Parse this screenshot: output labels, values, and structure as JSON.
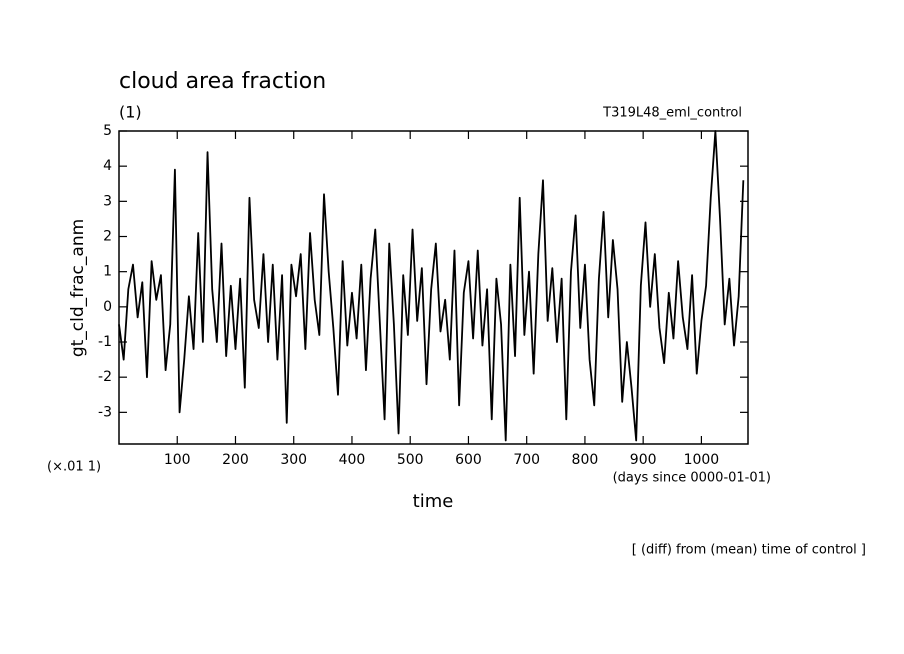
{
  "chart_data": {
    "type": "line",
    "title": "cloud area fraction",
    "subtitle": "(1)",
    "annotation": "T319L48_eml_control",
    "ylabel": "gt_cld_frac_anm",
    "yunit": "(×.01 1)",
    "xunit": "(days since 0000-01-01)",
    "xlabel": "time",
    "footnote": "[ (diff) from (mean) time of control ]",
    "xlim": [
      0,
      1080
    ],
    "xticks": [
      100,
      200,
      300,
      400,
      500,
      600,
      700,
      800,
      900,
      1000
    ],
    "ylim": [
      -3.9,
      5
    ],
    "yticks": [
      5,
      4,
      3,
      2,
      1,
      0,
      -1,
      -2,
      -3
    ],
    "x": [
      0,
      8,
      16,
      24,
      32,
      40,
      48,
      56,
      64,
      72,
      80,
      88,
      96,
      104,
      112,
      120,
      128,
      136,
      144,
      152,
      160,
      168,
      176,
      184,
      192,
      200,
      208,
      216,
      224,
      232,
      240,
      248,
      256,
      264,
      272,
      280,
      288,
      296,
      304,
      312,
      320,
      328,
      336,
      344,
      352,
      360,
      368,
      376,
      384,
      392,
      400,
      408,
      416,
      424,
      432,
      440,
      448,
      456,
      464,
      472,
      480,
      488,
      496,
      504,
      512,
      520,
      528,
      536,
      544,
      552,
      560,
      568,
      576,
      584,
      592,
      600,
      608,
      616,
      624,
      632,
      640,
      648,
      656,
      664,
      672,
      680,
      688,
      696,
      704,
      712,
      720,
      728,
      736,
      744,
      752,
      760,
      768,
      776,
      784,
      792,
      800,
      808,
      816,
      824,
      832,
      840,
      848,
      856,
      864,
      872,
      880,
      888,
      896,
      904,
      912,
      920,
      928,
      936,
      944,
      952,
      960,
      968,
      976,
      984,
      992,
      1000,
      1008,
      1016,
      1024,
      1032,
      1040,
      1048,
      1056,
      1064,
      1072
    ],
    "series": [
      {
        "name": "gt_cld_frac_anm",
        "color": "#000000",
        "values": [
          -0.5,
          -1.5,
          0.5,
          1.2,
          -0.3,
          0.7,
          -2.0,
          1.3,
          0.2,
          0.9,
          -1.8,
          -0.5,
          3.9,
          -3.0,
          -1.5,
          0.3,
          -1.2,
          2.1,
          -1.0,
          4.4,
          0.5,
          -1.0,
          1.8,
          -1.4,
          0.6,
          -1.2,
          0.8,
          -2.3,
          3.1,
          0.2,
          -0.6,
          1.5,
          -1.0,
          1.2,
          -1.5,
          0.9,
          -3.3,
          1.2,
          0.3,
          1.5,
          -1.2,
          2.1,
          0.2,
          -0.8,
          3.2,
          1.0,
          -0.6,
          -2.5,
          1.3,
          -1.1,
          0.4,
          -0.9,
          1.2,
          -1.8,
          0.8,
          2.2,
          -0.5,
          -3.2,
          1.8,
          -0.5,
          -3.6,
          0.9,
          -0.8,
          2.2,
          -0.4,
          1.1,
          -2.2,
          0.5,
          1.8,
          -0.7,
          0.2,
          -1.5,
          1.6,
          -2.8,
          0.4,
          1.3,
          -0.9,
          1.6,
          -1.1,
          0.5,
          -3.2,
          0.8,
          -0.5,
          -3.8,
          1.2,
          -1.4,
          3.1,
          -0.8,
          1.0,
          -1.9,
          1.5,
          3.6,
          -0.4,
          1.1,
          -1.0,
          0.8,
          -3.2,
          1.0,
          2.6,
          -0.6,
          1.2,
          -1.5,
          -2.8,
          0.8,
          2.7,
          -0.3,
          1.9,
          0.5,
          -2.7,
          -1.0,
          -2.3,
          -3.8,
          0.6,
          2.4,
          0.0,
          1.5,
          -0.6,
          -1.6,
          0.4,
          -0.9,
          1.3,
          -0.3,
          -1.2,
          0.9,
          -1.9,
          -0.4,
          0.6,
          3.1,
          5.0,
          2.5,
          -0.5,
          0.8,
          -1.1,
          0.3,
          3.6
        ]
      }
    ]
  }
}
